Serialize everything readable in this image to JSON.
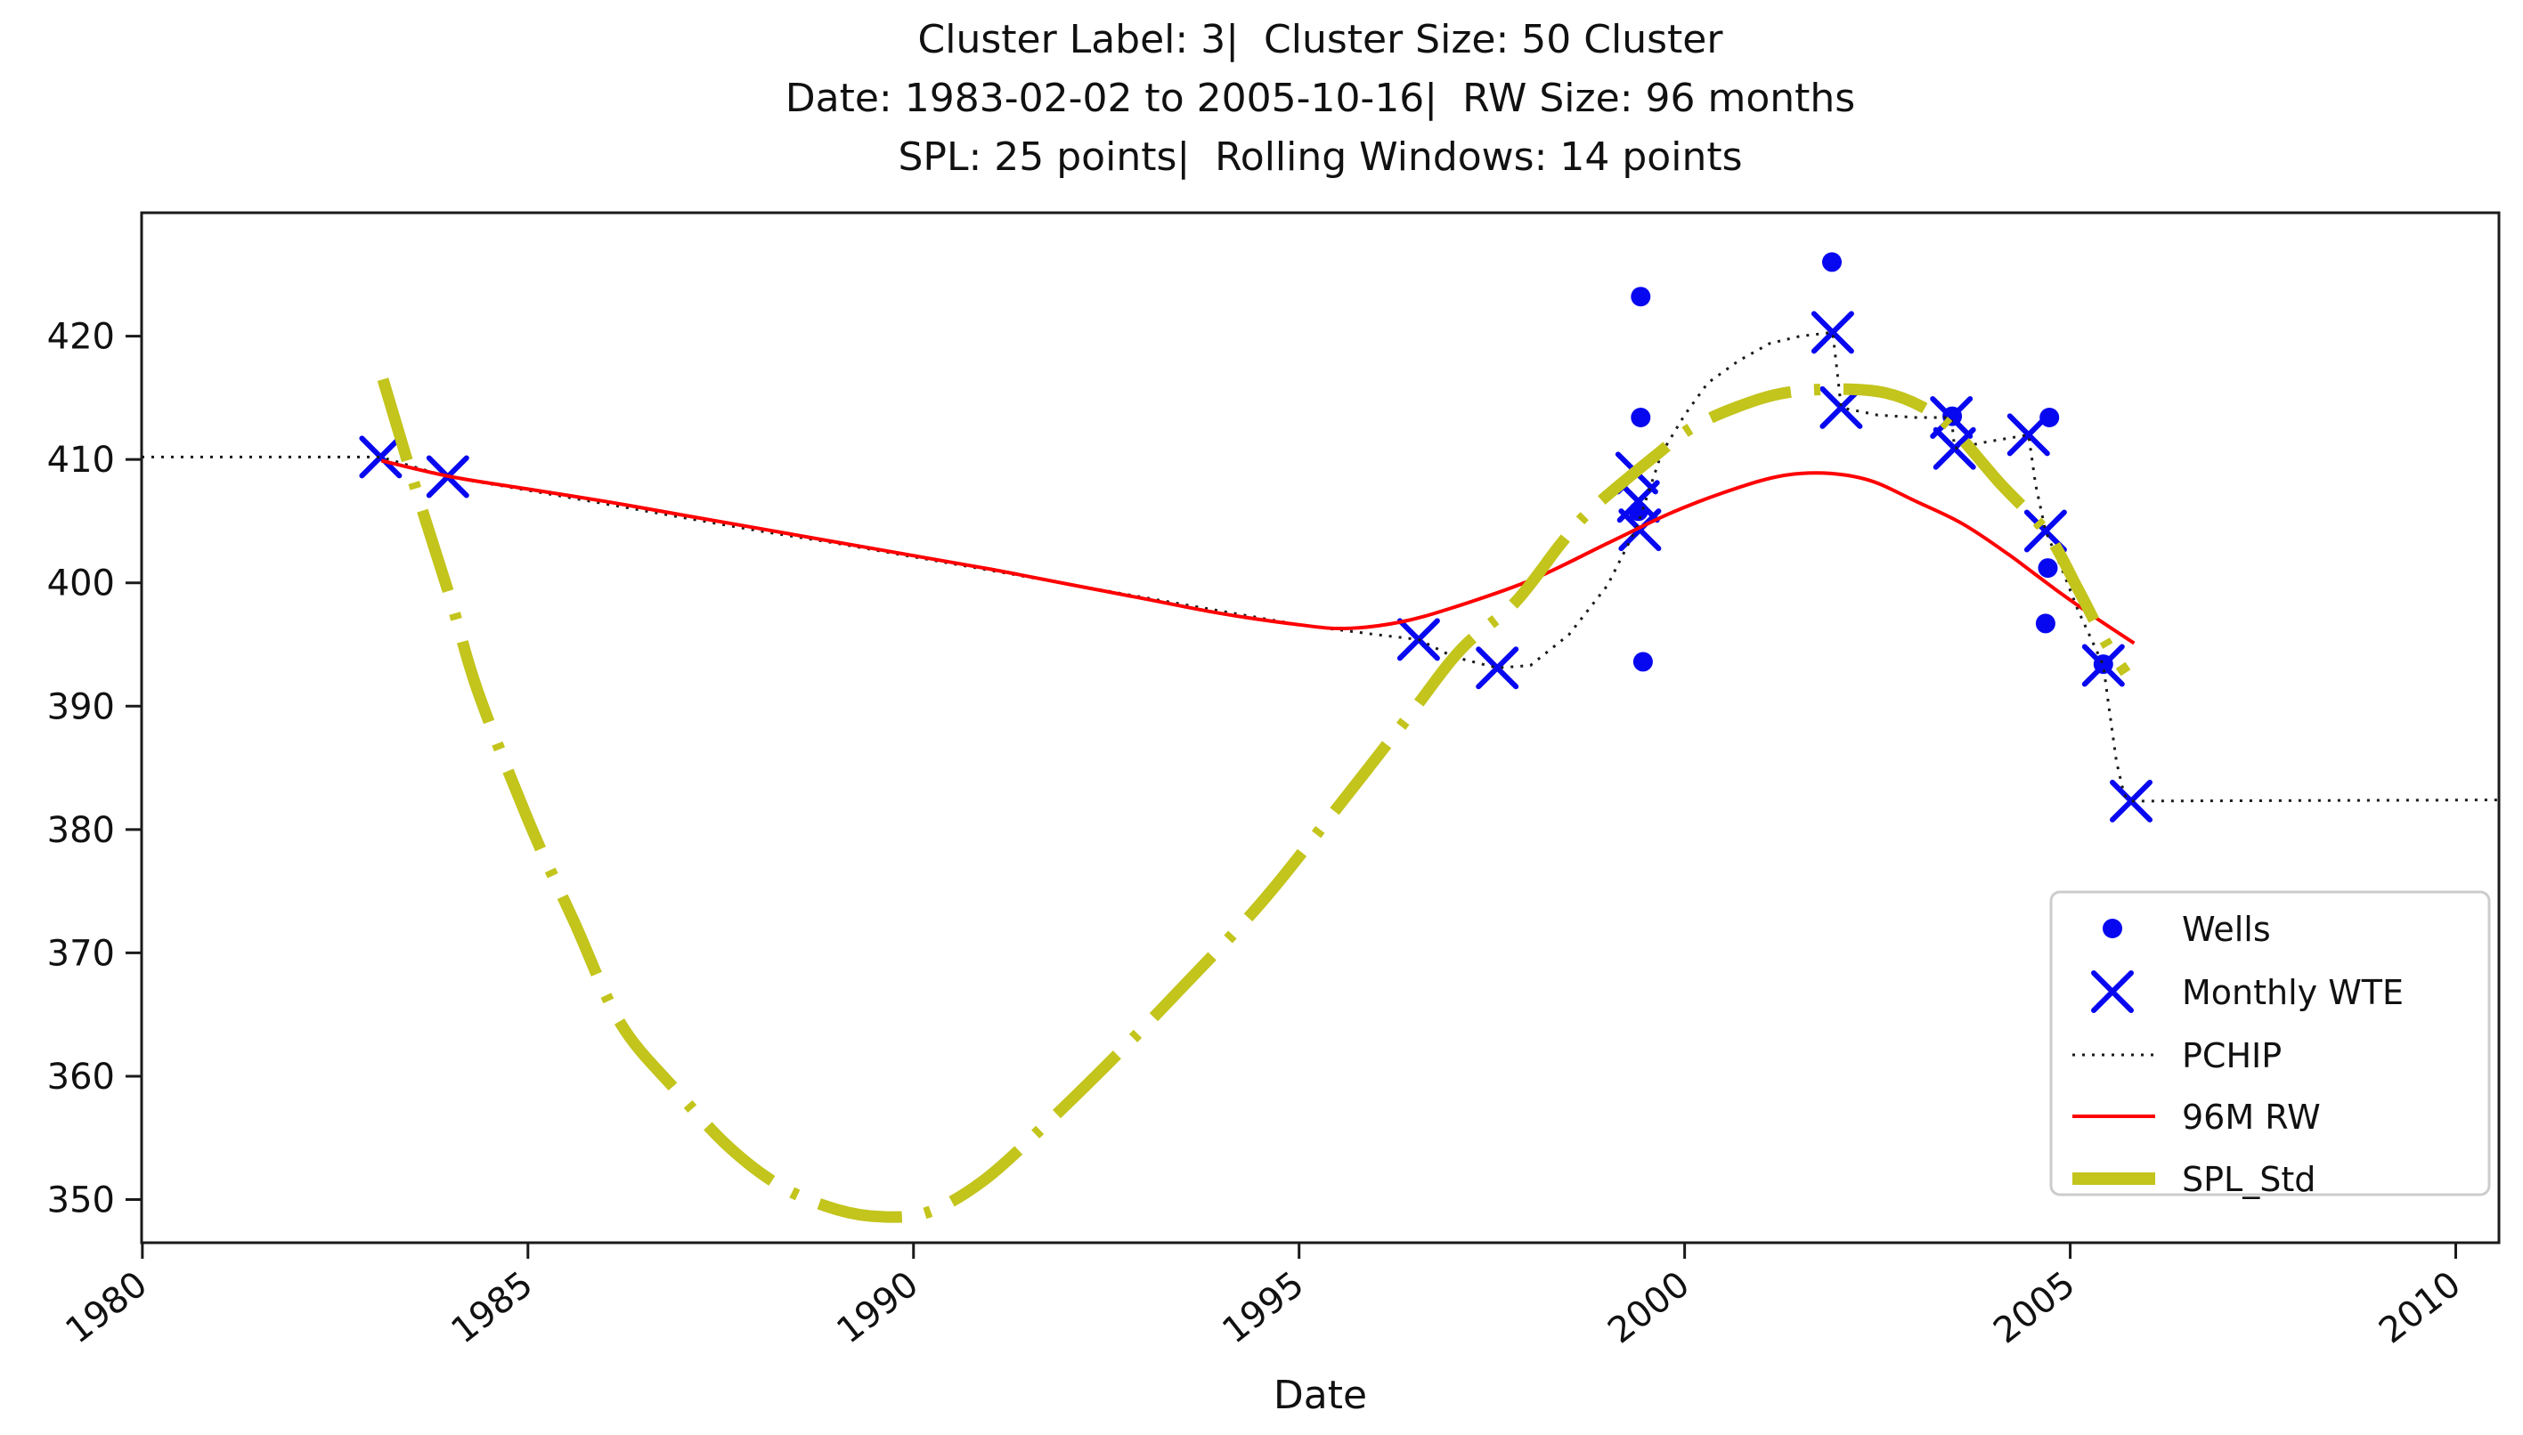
{
  "title": {
    "line1": "Cluster Label: 3|  Cluster Size: 50 Cluster",
    "line2": "Date: 1983-02-02 to 2005-10-16|  RW Size: 96 months",
    "line3": "SPL: 25 points|  Rolling Windows: 14 points"
  },
  "axes": {
    "xlabel": "Date",
    "x_ticks": [
      1980,
      1985,
      1990,
      1995,
      2000,
      2005,
      2010
    ],
    "y_ticks": [
      350,
      360,
      370,
      380,
      390,
      400,
      410,
      420
    ],
    "xlim": [
      1979.99,
      2010.56
    ],
    "ylim": [
      346.5,
      430.0
    ],
    "grid": false
  },
  "legend": {
    "position": "lower right",
    "items": [
      {
        "label": "Wells",
        "marker": "dot",
        "color": "#0808f0"
      },
      {
        "label": "Monthly WTE",
        "marker": "x",
        "color": "#0808f0"
      },
      {
        "label": "PCHIP",
        "marker": "dotted-line",
        "color": "#1a1a1a"
      },
      {
        "label": "96M RW",
        "marker": "solid-line",
        "color": "#ff0000"
      },
      {
        "label": "SPL_Std",
        "marker": "thick-line",
        "color": "#c3c41c"
      }
    ]
  },
  "chart_data": {
    "type": "line",
    "title": "Cluster Label: 3|  Cluster Size: 50 Cluster\nDate: 1983-02-02 to 2005-10-16|  RW Size: 96 months\nSPL: 25 points|  Rolling Windows: 14 points",
    "xlabel": "Date",
    "ylabel": "",
    "xlim": [
      1979.99,
      2010.56
    ],
    "ylim": [
      346.5,
      430.0
    ],
    "series": [
      {
        "name": "Wells",
        "type": "scatter",
        "marker": "dot",
        "color": "#0808f0",
        "points": [
          [
            1999.43,
            423.2
          ],
          [
            1999.43,
            413.4
          ],
          [
            1999.4,
            405.8
          ],
          [
            1999.46,
            393.6
          ],
          [
            2001.91,
            426.0
          ],
          [
            2003.47,
            413.5
          ],
          [
            2004.73,
            413.4
          ],
          [
            2004.71,
            401.2
          ],
          [
            2004.68,
            396.7
          ],
          [
            2005.43,
            393.4
          ]
        ]
      },
      {
        "name": "Monthly WTE",
        "type": "scatter",
        "marker": "x",
        "color": "#0808f0",
        "points": [
          [
            1983.09,
            410.2
          ],
          [
            1983.96,
            408.6
          ],
          [
            1996.55,
            395.4
          ],
          [
            1997.57,
            393.1
          ],
          [
            1999.38,
            408.9
          ],
          [
            1999.4,
            406.6
          ],
          [
            1999.42,
            404.3
          ],
          [
            2001.92,
            420.3
          ],
          [
            2002.03,
            414.2
          ],
          [
            2003.46,
            413.4
          ],
          [
            2003.5,
            410.9
          ],
          [
            2004.46,
            412.0
          ],
          [
            2004.68,
            404.2
          ],
          [
            2005.43,
            393.3
          ],
          [
            2005.79,
            382.3
          ]
        ]
      },
      {
        "name": "PCHIP",
        "type": "line",
        "style": "dotted",
        "smooth": false,
        "color": "#1a1a1a",
        "points": [
          [
            1979.99,
            410.2
          ],
          [
            1983.09,
            410.2
          ],
          [
            1983.96,
            408.6
          ],
          [
            1985,
            407.5
          ],
          [
            1986,
            406.4
          ],
          [
            1987,
            405.3
          ],
          [
            1988,
            404.2
          ],
          [
            1989,
            403.2
          ],
          [
            1990,
            402.1
          ],
          [
            1991,
            401.0
          ],
          [
            1992,
            399.9
          ],
          [
            1993,
            398.8
          ],
          [
            1994,
            397.7
          ],
          [
            1995,
            396.6
          ],
          [
            1996,
            395.8
          ],
          [
            1996.55,
            395.4
          ],
          [
            1997.0,
            394.0
          ],
          [
            1997.57,
            393.1
          ],
          [
            1998.0,
            393.3
          ],
          [
            1998.5,
            395.8
          ],
          [
            1999.0,
            399.8
          ],
          [
            1999.38,
            404.5
          ],
          [
            1999.7,
            410.5
          ],
          [
            2000.0,
            413.6
          ],
          [
            2000.3,
            416.2
          ],
          [
            2000.7,
            418.0
          ],
          [
            2001.1,
            419.4
          ],
          [
            2001.5,
            420.0
          ],
          [
            2001.92,
            420.3
          ],
          [
            2001.98,
            417.0
          ],
          [
            2002.03,
            414.2
          ],
          [
            2002.5,
            413.6
          ],
          [
            2003.0,
            413.4
          ],
          [
            2003.46,
            413.4
          ],
          [
            2003.5,
            410.9
          ],
          [
            2003.9,
            411.4
          ],
          [
            2004.46,
            412.0
          ],
          [
            2004.55,
            408.0
          ],
          [
            2004.68,
            404.2
          ],
          [
            2004.9,
            401.0
          ],
          [
            2005.1,
            397.8
          ],
          [
            2005.43,
            393.3
          ],
          [
            2005.5,
            390.0
          ],
          [
            2005.6,
            385.5
          ],
          [
            2005.7,
            382.8
          ],
          [
            2005.79,
            382.3
          ],
          [
            2010.56,
            382.4
          ]
        ]
      },
      {
        "name": "96M RW",
        "type": "line",
        "style": "solid",
        "smooth": true,
        "color": "#ff0000",
        "points": [
          [
            1983.1,
            409.9
          ],
          [
            1984.0,
            408.6
          ],
          [
            1985,
            407.6
          ],
          [
            1986,
            406.6
          ],
          [
            1987,
            405.5
          ],
          [
            1988,
            404.4
          ],
          [
            1989,
            403.3
          ],
          [
            1990,
            402.2
          ],
          [
            1991,
            401.1
          ],
          [
            1992,
            399.9
          ],
          [
            1993,
            398.7
          ],
          [
            1994,
            397.5
          ],
          [
            1995,
            396.6
          ],
          [
            1995.6,
            396.3
          ],
          [
            1996.3,
            396.8
          ],
          [
            1997.0,
            398.0
          ],
          [
            1998.0,
            400.2
          ],
          [
            1999.0,
            403.2
          ],
          [
            1999.8,
            405.6
          ],
          [
            2000.5,
            407.3
          ],
          [
            2001.2,
            408.6
          ],
          [
            2001.8,
            408.9
          ],
          [
            2002.4,
            408.3
          ],
          [
            2003.0,
            406.6
          ],
          [
            2003.6,
            404.8
          ],
          [
            2004.2,
            402.3
          ],
          [
            2004.8,
            399.5
          ],
          [
            2005.3,
            397.3
          ],
          [
            2005.83,
            395.1
          ]
        ]
      },
      {
        "name": "SPL_Std",
        "type": "line",
        "style": "dashdot",
        "smooth": true,
        "color": "#c3c41c",
        "points": [
          [
            1983.12,
            416.5
          ],
          [
            1983.6,
            406.5
          ],
          [
            1984.0,
            398.6
          ],
          [
            1984.35,
            391.2
          ],
          [
            1985.0,
            380.8
          ],
          [
            1985.6,
            372.5
          ],
          [
            1986.2,
            364.3
          ],
          [
            1986.9,
            359.0
          ],
          [
            1987.6,
            354.3
          ],
          [
            1988.3,
            351.0
          ],
          [
            1989.0,
            349.2
          ],
          [
            1989.6,
            348.6
          ],
          [
            1990.2,
            349.0
          ],
          [
            1990.9,
            351.5
          ],
          [
            1991.7,
            356.0
          ],
          [
            1992.6,
            361.5
          ],
          [
            1993.5,
            367.3
          ],
          [
            1994.5,
            374.0
          ],
          [
            1995.4,
            381.0
          ],
          [
            1996.4,
            389.0
          ],
          [
            1997.1,
            394.6
          ],
          [
            1997.8,
            398.4
          ],
          [
            1998.4,
            403.2
          ],
          [
            1998.8,
            406.0
          ],
          [
            1999.6,
            410.2
          ],
          [
            2000.1,
            412.6
          ],
          [
            2000.7,
            414.3
          ],
          [
            2001.3,
            415.4
          ],
          [
            2002.0,
            415.7
          ],
          [
            2002.6,
            415.4
          ],
          [
            2003.1,
            414.2
          ],
          [
            2003.5,
            412.3
          ],
          [
            2004.1,
            408.0
          ],
          [
            2004.7,
            404.0
          ],
          [
            2005.1,
            399.5
          ],
          [
            2005.45,
            395.3
          ],
          [
            2005.72,
            392.7
          ]
        ]
      }
    ]
  }
}
